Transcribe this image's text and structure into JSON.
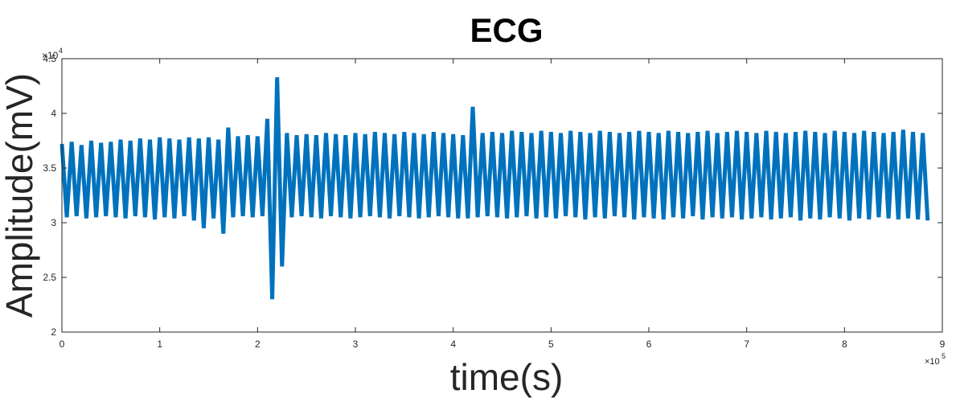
{
  "chart_data": {
    "type": "line",
    "title": "ECG",
    "x_label": "time(s)",
    "y_label": "Amplitude(mV)",
    "x_multiplier": {
      "base": "×10",
      "exponent": "5"
    },
    "y_multiplier": {
      "base": "×10",
      "exponent": "4"
    },
    "xlim": [
      0,
      9
    ],
    "ylim": [
      2,
      4.5
    ],
    "xticks": [
      0,
      1,
      2,
      3,
      4,
      5,
      6,
      7,
      8,
      9
    ],
    "yticks": [
      2,
      2.5,
      3,
      3.5,
      4,
      4.5
    ],
    "grid": false,
    "x": [
      0,
      0.05,
      0.1,
      0.15,
      0.2,
      0.25,
      0.3,
      0.35,
      0.4,
      0.45,
      0.5,
      0.55,
      0.6,
      0.65,
      0.7,
      0.75,
      0.8,
      0.85,
      0.9,
      0.95,
      1,
      1.05,
      1.1,
      1.15,
      1.2,
      1.25,
      1.3,
      1.35,
      1.4,
      1.45,
      1.5,
      1.55,
      1.6,
      1.65,
      1.7,
      1.75,
      1.8,
      1.85,
      1.9,
      1.95,
      2,
      2.05,
      2.1,
      2.15,
      2.2,
      2.25,
      2.3,
      2.35,
      2.4,
      2.45,
      2.5,
      2.55,
      2.6,
      2.65,
      2.7,
      2.75,
      2.8,
      2.85,
      2.9,
      2.95,
      3,
      3.05,
      3.1,
      3.15,
      3.2,
      3.25,
      3.3,
      3.35,
      3.4,
      3.45,
      3.5,
      3.55,
      3.6,
      3.65,
      3.7,
      3.75,
      3.8,
      3.85,
      3.9,
      3.95,
      4,
      4.05,
      4.1,
      4.15,
      4.2,
      4.25,
      4.3,
      4.35,
      4.4,
      4.45,
      4.5,
      4.55,
      4.6,
      4.65,
      4.7,
      4.75,
      4.8,
      4.85,
      4.9,
      4.95,
      5,
      5.05,
      5.1,
      5.15,
      5.2,
      5.25,
      5.3,
      5.35,
      5.4,
      5.45,
      5.5,
      5.55,
      5.6,
      5.65,
      5.7,
      5.75,
      5.8,
      5.85,
      5.9,
      5.95,
      6,
      6.05,
      6.1,
      6.15,
      6.2,
      6.25,
      6.3,
      6.35,
      6.4,
      6.45,
      6.5,
      6.55,
      6.6,
      6.65,
      6.7,
      6.75,
      6.8,
      6.85,
      6.9,
      6.95,
      7,
      7.05,
      7.1,
      7.15,
      7.2,
      7.25,
      7.3,
      7.35,
      7.4,
      7.45,
      7.5,
      7.55,
      7.6,
      7.65,
      7.7,
      7.75,
      7.8,
      7.85,
      7.9,
      7.95,
      8,
      8.05,
      8.1,
      8.15,
      8.2,
      8.25,
      8.3,
      8.35,
      8.4,
      8.45,
      8.5,
      8.55,
      8.6,
      8.65,
      8.7,
      8.75,
      8.8,
      8.85
    ],
    "color": "#0072bd",
    "values": [
      3.72,
      3.05,
      3.74,
      3.06,
      3.71,
      3.04,
      3.75,
      3.05,
      3.73,
      3.06,
      3.74,
      3.05,
      3.76,
      3.04,
      3.75,
      3.06,
      3.77,
      3.05,
      3.76,
      3.03,
      3.78,
      3.05,
      3.77,
      3.04,
      3.76,
      3.06,
      3.78,
      3.02,
      3.77,
      2.95,
      3.78,
      3.04,
      3.76,
      2.9,
      3.87,
      3.05,
      3.79,
      3.06,
      3.8,
      3.05,
      3.79,
      3.06,
      3.95,
      2.3,
      4.33,
      2.6,
      3.82,
      3.05,
      3.8,
      3.06,
      3.81,
      3.05,
      3.8,
      3.04,
      3.82,
      3.06,
      3.81,
      3.05,
      3.8,
      3.04,
      3.82,
      3.05,
      3.81,
      3.06,
      3.83,
      3.05,
      3.82,
      3.04,
      3.81,
      3.06,
      3.83,
      3.05,
      3.82,
      3.04,
      3.81,
      3.05,
      3.83,
      3.06,
      3.82,
      3.05,
      3.81,
      3.04,
      3.8,
      3.04,
      4.06,
      3.05,
      3.82,
      3.06,
      3.83,
      3.05,
      3.82,
      3.04,
      3.84,
      3.05,
      3.83,
      3.06,
      3.82,
      3.04,
      3.84,
      3.05,
      3.83,
      3.04,
      3.82,
      3.06,
      3.84,
      3.05,
      3.83,
      3.03,
      3.82,
      3.05,
      3.84,
      3.04,
      3.83,
      3.06,
      3.82,
      3.05,
      3.83,
      3.03,
      3.84,
      3.05,
      3.83,
      3.04,
      3.82,
      3.03,
      3.84,
      3.05,
      3.83,
      3.04,
      3.82,
      3.06,
      3.83,
      3.03,
      3.84,
      3.05,
      3.82,
      3.04,
      3.83,
      3.05,
      3.84,
      3.03,
      3.83,
      3.04,
      3.82,
      3.05,
      3.84,
      3.03,
      3.83,
      3.04,
      3.82,
      3.05,
      3.83,
      3.02,
      3.84,
      3.04,
      3.83,
      3.03,
      3.82,
      3.05,
      3.84,
      3.04,
      3.83,
      3.02,
      3.82,
      3.04,
      3.84,
      3.03,
      3.83,
      3.05,
      3.82,
      3.04,
      3.83,
      3.03,
      3.85,
      3.04,
      3.83,
      3.03,
      3.82,
      3.02
    ]
  }
}
